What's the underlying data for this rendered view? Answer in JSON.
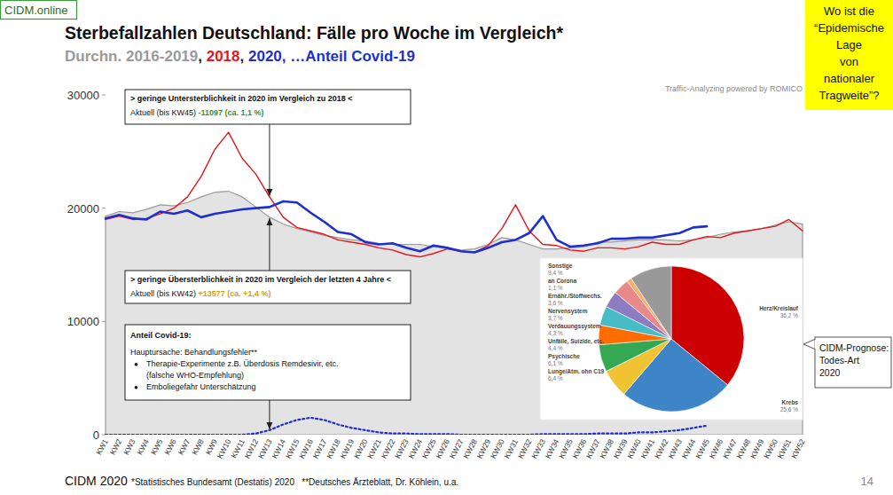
{
  "page": {
    "badge": "CIDM.online",
    "subtitle_separators": [
      ", ",
      ", ",
      ", …"
    ],
    "corner_note": [
      "Wo ist die",
      "“Epidemische",
      "Lage",
      "von",
      "nationaler",
      "Tragweite”?"
    ],
    "watermark": "Traffic-Analyzing powered by ROMICO",
    "footer": "CIDM 2020",
    "footnote": "*Statistisches Bundesamt (Destatis) 2020   **Deutsches Ärzteblatt, Dr. Köhlein, u.a.",
    "page_number": "14"
  },
  "chart_data": [
    {
      "type": "line",
      "title": "Sterbefallzahlen Deutschland: Fälle pro Woche im Vergleich*",
      "categories": [
        "KW1",
        "KW2",
        "KW3",
        "KW4",
        "KW5",
        "KW6",
        "KW7",
        "KW8",
        "KW9",
        "KW10",
        "KW11",
        "KW12",
        "KW13",
        "KW14",
        "KW15",
        "KW16",
        "KW17",
        "KW18",
        "KW19",
        "KW20",
        "KW21",
        "KW22",
        "KW23",
        "KW24",
        "KW25",
        "KW26",
        "KW27",
        "KW28",
        "KW29",
        "KW30",
        "KW31",
        "KW32",
        "KW33",
        "KW34",
        "KW35",
        "KW36",
        "KW37",
        "KW38",
        "KW39",
        "KW40",
        "KW41",
        "KW42",
        "KW43",
        "KW44",
        "KW45",
        "KW46",
        "KW47",
        "KW48",
        "KW49",
        "KW50",
        "KW51",
        "KW52"
      ],
      "series": [
        {
          "name": "Durchn. 2016-2019",
          "color": "#9a9a9a",
          "type": "area",
          "values": [
            19300,
            19700,
            19600,
            19900,
            20300,
            20200,
            20500,
            21000,
            21400,
            21500,
            21000,
            20100,
            19200,
            18600,
            18200,
            17900,
            17600,
            17400,
            17200,
            17100,
            16900,
            16800,
            16800,
            16800,
            16600,
            16500,
            16300,
            16400,
            16800,
            17400,
            17200,
            16800,
            16400,
            16400,
            16500,
            16600,
            17000,
            17000,
            17100,
            17200,
            17200,
            17200,
            17100,
            17200,
            17400,
            17700,
            17900,
            18000,
            18200,
            18500,
            18800,
            18600
          ]
        },
        {
          "name": "2018",
          "color": "#e8141a",
          "type": "line",
          "values": [
            19000,
            19300,
            19000,
            19100,
            19500,
            20000,
            21000,
            22800,
            25200,
            26700,
            24400,
            23000,
            21000,
            19200,
            18300,
            18000,
            17700,
            17200,
            17000,
            16800,
            16500,
            16300,
            15900,
            15700,
            16000,
            16400,
            16200,
            16100,
            16700,
            18200,
            20300,
            18000,
            16800,
            16700,
            16300,
            16200,
            16500,
            16500,
            16400,
            16600,
            17000,
            16800,
            16800,
            17200,
            17500,
            17400,
            17800,
            18000,
            18200,
            18400,
            19000,
            18000
          ]
        },
        {
          "name": "2020",
          "color": "#1f2fcf",
          "type": "line",
          "values": [
            19100,
            19400,
            19100,
            19000,
            19700,
            19500,
            19800,
            19200,
            19500,
            19700,
            19900,
            20000,
            20100,
            20600,
            20500,
            19600,
            18800,
            17900,
            17700,
            17000,
            16800,
            16900,
            16500,
            16200,
            16700,
            16500,
            16200,
            16100,
            16500,
            17000,
            17200,
            17800,
            19300,
            17200,
            16600,
            16700,
            16900,
            17300,
            17300,
            17400,
            17400,
            17600,
            17800,
            18300,
            18400,
            null,
            null,
            null,
            null,
            null,
            null,
            null
          ]
        },
        {
          "name": "Anteil Covid-19",
          "color": "#1f2fcf",
          "type": "line",
          "line_style": "dotted",
          "values": [
            0,
            0,
            0,
            0,
            0,
            0,
            0,
            0,
            0,
            0,
            0,
            100,
            400,
            900,
            1300,
            1500,
            1300,
            900,
            600,
            400,
            200,
            100,
            100,
            50,
            50,
            50,
            0,
            0,
            0,
            0,
            0,
            0,
            50,
            50,
            50,
            50,
            100,
            100,
            100,
            200,
            200,
            300,
            400,
            600,
            800,
            null,
            null,
            null,
            null,
            null,
            null,
            null
          ]
        }
      ],
      "ylim": [
        0,
        30000
      ],
      "yticks": [
        0,
        10000,
        20000,
        30000
      ],
      "grid": false,
      "annotations": [
        {
          "x": "KW13",
          "heading": "> geringe Untersterblichkeit in 2020 im Vergleich zu 2018 <",
          "lines": [
            [
              "Aktuell (bis KW45) ",
              {
                "text": "-11097 (ca. 1,1 %)",
                "color": "#3e8e2f"
              }
            ]
          ]
        },
        {
          "x": "KW13",
          "heading": "> geringe Übersterblichkeit in 2020 im Vergleich der letzten 4 Jahre <",
          "lines": [
            [
              "Aktuell (bis KW42) ",
              {
                "text": "+13577 (ca. +1,4 %)",
                "color": "#d4a017"
              }
            ]
          ]
        },
        {
          "x": "KW13",
          "heading": "Anteil Covid-19:",
          "lines": [
            [
              "Hauptursache: Behandlungsfehler**"
            ]
          ],
          "bullet": "●",
          "items": [
            [
              "Therapie-Experimente z.B. Überdosis Remdesivir, etc.",
              "(falsche WHO-Empfehlung)"
            ],
            [
              "Emboliegefahr Unterschätzung"
            ]
          ]
        }
      ]
    },
    {
      "type": "pie",
      "title": "CIDM-Prognose: Todes-Art 2020",
      "categories": [
        "Herz/Kreislauf",
        "Krebs",
        "Lunge/Atm. ohn C19",
        "Psychische",
        "Unfälle, Suizide, etc.",
        "Verdauungssystem",
        "Nervensystem",
        "Ernähr./Stoffwechs.",
        "an Corona",
        "Sonstige"
      ],
      "values": [
        36.2,
        25.6,
        6.4,
        6.1,
        4.4,
        4.3,
        3.7,
        3.6,
        1.1,
        9.4
      ],
      "value_labels": [
        "36,2 %",
        "25,6 %",
        "6,4 %",
        "6,1 %",
        "4,4 %",
        "4,3 %",
        "3,7 %",
        "3,6 %",
        "1,1 %",
        "9,4 %"
      ],
      "colors": [
        "#cc0000",
        "#3d85c6",
        "#f1c232",
        "#34a853",
        "#ff6d01",
        "#46bdc6",
        "#8e7cc3",
        "#e88a8a",
        "#f6b26b",
        "#999999"
      ],
      "data_labels": true
    }
  ]
}
